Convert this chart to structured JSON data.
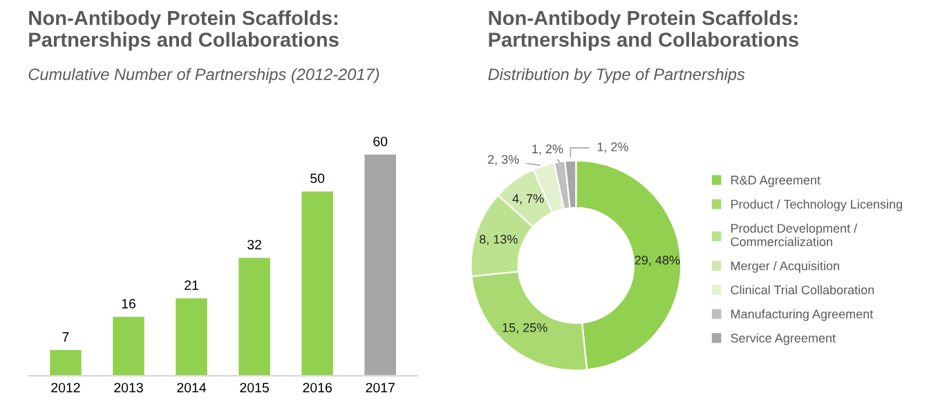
{
  "chart_data": [
    {
      "type": "bar",
      "title": "Non-Antibody Protein Scaffolds:\nPartnerships and Collaborations",
      "subtitle": "Cumulative Number of Partnerships (2012-2017)",
      "categories": [
        "2012",
        "2013",
        "2014",
        "2015",
        "2016",
        "2017"
      ],
      "values": [
        7,
        16,
        21,
        32,
        50,
        60
      ],
      "colors": [
        "#92d050",
        "#92d050",
        "#92d050",
        "#92d050",
        "#92d050",
        "#a6a6a6"
      ],
      "data_labels": true,
      "grid": false,
      "legend": false,
      "tick_labels": "x"
    },
    {
      "type": "donut",
      "title": "Non-Antibody Protein Scaffolds:\nPartnerships and Collaborations",
      "subtitle": "Distribution by Type of Partnerships",
      "categories": [
        "R&D Agreement",
        "Product / Technology Licensing",
        "Product Development /\nCommercialization",
        "Merger / Acquisition",
        "Clinical Trial Collaboration",
        "Manufacturing Agreement",
        "Service Agreement"
      ],
      "values": [
        29,
        15,
        8,
        4,
        2,
        1,
        1
      ],
      "value_labels": [
        "29, 48%",
        "15, 25%",
        "8, 13%",
        "4, 7%",
        "2, 3%",
        "1, 2%",
        "1, 2%"
      ],
      "colors": [
        "#92d050",
        "#a9d970",
        "#bde28f",
        "#cfe9ae",
        "#e3f1cf",
        "#bfbfbf",
        "#a6a6a6"
      ],
      "legend": "right"
    }
  ]
}
